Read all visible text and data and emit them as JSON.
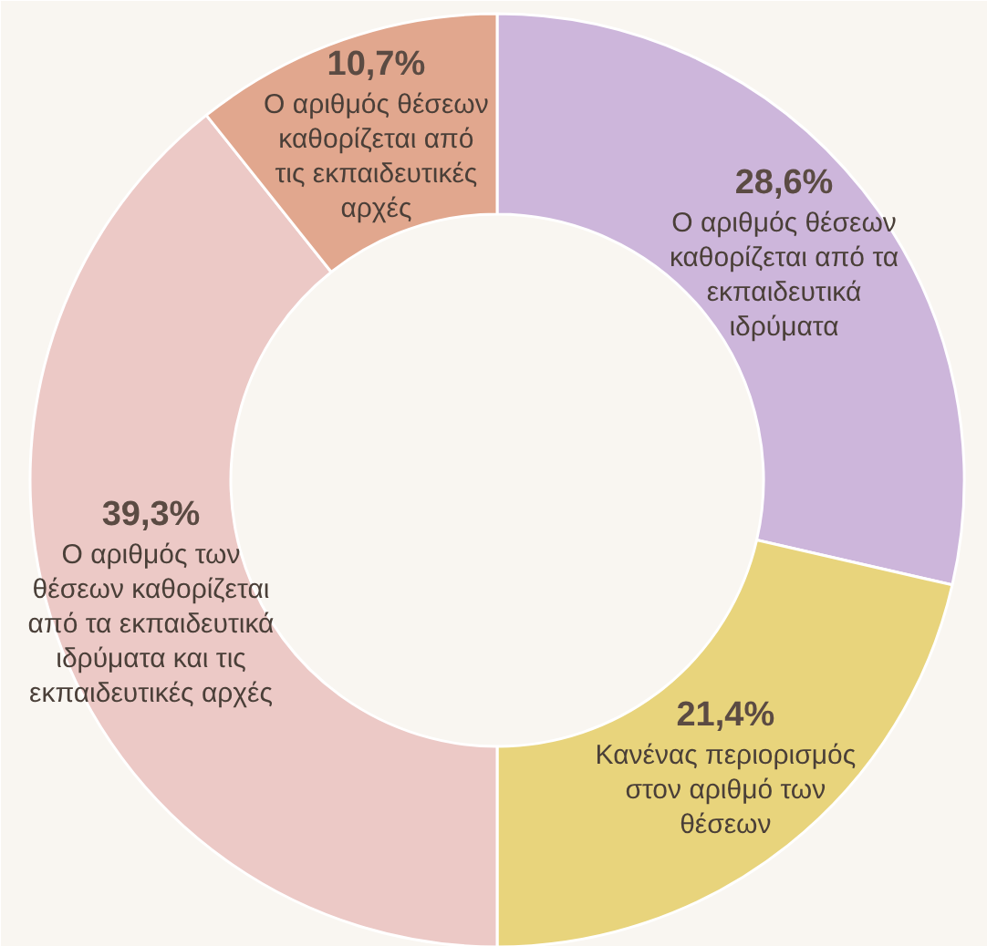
{
  "chart_data": {
    "type": "donut",
    "categories": [
      "Ο αριθμός θέσεων καθορίζεται από τα εκπαιδευτικά ιδρύματα",
      "Κανένας περιορισμός στον αριθμό των θέσεων",
      "Ο αριθμός των θέσεων καθορίζεται από τα εκπαιδευτικά ιδρύματα και τις εκπαιδευτικές αρχές",
      "Ο αριθμός θέσεων καθορίζεται από τις εκπαιδευτικές αρχές"
    ],
    "values": [
      28.6,
      21.4,
      39.3,
      10.7
    ],
    "colors": [
      "#cdb6db",
      "#e8d47c",
      "#ecc9c6",
      "#e1a78e"
    ],
    "value_labels": [
      "28,6%",
      "21,4%",
      "39,3%",
      "10,7%"
    ]
  }
}
